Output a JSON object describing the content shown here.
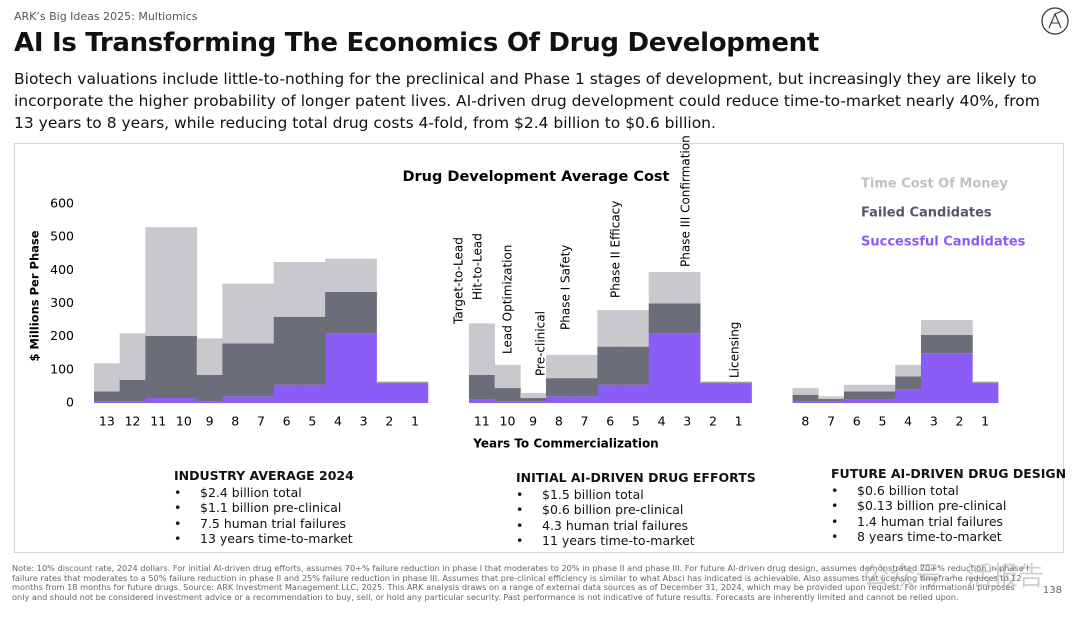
{
  "brand": "ARK’s Big Ideas 2025: Multiomics",
  "headline": "AI Is Transforming The Economics Of Drug Development",
  "lede": "Biotech valuations include little-to-nothing for the preclinical and Phase 1 stages of development, but increasingly they are likely to incorporate the higher probability of longer patent lives. AI-driven drug development could reduce time-to-market nearly 40%, from 13 years to 8 years, while reducing total drug costs 4-fold, from $2.4 billion to $0.6 billion.",
  "chart_data": {
    "type": "stacked-step",
    "title": "Drug Development Average Cost",
    "ylabel": "$ Millions Per Phase",
    "xlabel": "Years To Commercialization",
    "ylim": [
      0,
      600
    ],
    "yticks": [
      0,
      100,
      200,
      300,
      400,
      500,
      600
    ],
    "grid": false,
    "categories": [
      "13",
      "12",
      "11",
      "10",
      "9",
      "8",
      "7",
      "6",
      "5",
      "4",
      "3",
      "2",
      "1",
      null,
      "11",
      "10",
      "9",
      "8",
      "7",
      "6",
      "5",
      "4",
      "3",
      "2",
      "1",
      null,
      "8",
      "7",
      "6",
      "5",
      "4",
      "3",
      "2",
      "1"
    ],
    "series": [
      {
        "name": "Time Cost Of Money",
        "color": "#c8c8cd",
        "values": [
          85,
          140,
          328,
          328,
          110,
          180,
          180,
          165,
          165,
          100,
          100,
          3,
          3,
          null,
          155,
          70,
          15,
          70,
          70,
          110,
          110,
          95,
          95,
          3,
          3,
          null,
          20,
          8,
          20,
          20,
          35,
          45,
          45,
          3
        ]
      },
      {
        "name": "Failed Candidates",
        "color": "#6b6d79",
        "values": [
          30,
          65,
          187,
          187,
          80,
          160,
          160,
          205,
          205,
          125,
          125,
          2,
          2,
          null,
          75,
          40,
          10,
          55,
          55,
          115,
          115,
          90,
          90,
          2,
          2,
          null,
          20,
          7,
          25,
          25,
          40,
          55,
          55,
          2
        ]
      },
      {
        "name": "Successful Candidates",
        "color": "#8b5cf6",
        "values": [
          5,
          5,
          15,
          15,
          5,
          20,
          20,
          55,
          55,
          210,
          210,
          60,
          60,
          null,
          10,
          5,
          5,
          20,
          20,
          55,
          55,
          210,
          210,
          60,
          60,
          null,
          5,
          5,
          10,
          10,
          40,
          150,
          150,
          60
        ]
      }
    ],
    "annotations": [
      "Target-to-Lead",
      "Hit-to-Lead",
      "Lead Optimization",
      "Pre-clinical",
      "Phase I Safety",
      "Phase II Efficacy",
      "Phase III Confirmation",
      "Licensing"
    ]
  },
  "summaries": [
    {
      "title": "INDUSTRY AVERAGE 2024",
      "items": [
        "$2.4 billion total",
        "$1.1 billion pre-clinical",
        "7.5 human trial failures",
        "13 years time-to-market"
      ]
    },
    {
      "title": "INITIAL AI-DRIVEN DRUG EFFORTS",
      "items": [
        "$1.5 billion total",
        "$0.6 billion pre-clinical",
        "4.3 human trial failures",
        "11 years time-to-market"
      ]
    },
    {
      "title": "FUTURE AI-DRIVEN DRUG DESIGN",
      "items": [
        "$0.6 billion total",
        "$0.13 billion pre-clinical",
        "1.4 human trial failures",
        "8 years time-to-market"
      ]
    }
  ],
  "note": "Note: 10% discount rate, 2024 dollars. For initial AI-driven drug efforts, assumes 70+% failure reduction in phase I that moderates to 20% in phase II and phase III. For future AI-driven drug design, assumes demonstrated 70+% reduction in phase I failure rates that moderates to a 50% failure reduction in phase II and 25% failure reduction in phase III. Assumes that pre-clinical efficiency is similar to what Absci has indicated is achievable. Also assumes that licensing timeframe reduces to 12 months from 18 months for future drugs. Source: ARK Investment Management LLC, 2025. This ARK analysis draws on a range of external data sources as of December 31, 2024, which may be provided upon request. For informational purposes only and should not be considered investment advice or a recommendation to buy, sell, or hold any particular security. Past performance is not indicative of future results. Forecasts are inherently limited and cannot be relied upon.",
  "watermark": "公众号 · 活报告",
  "page_number": "138"
}
